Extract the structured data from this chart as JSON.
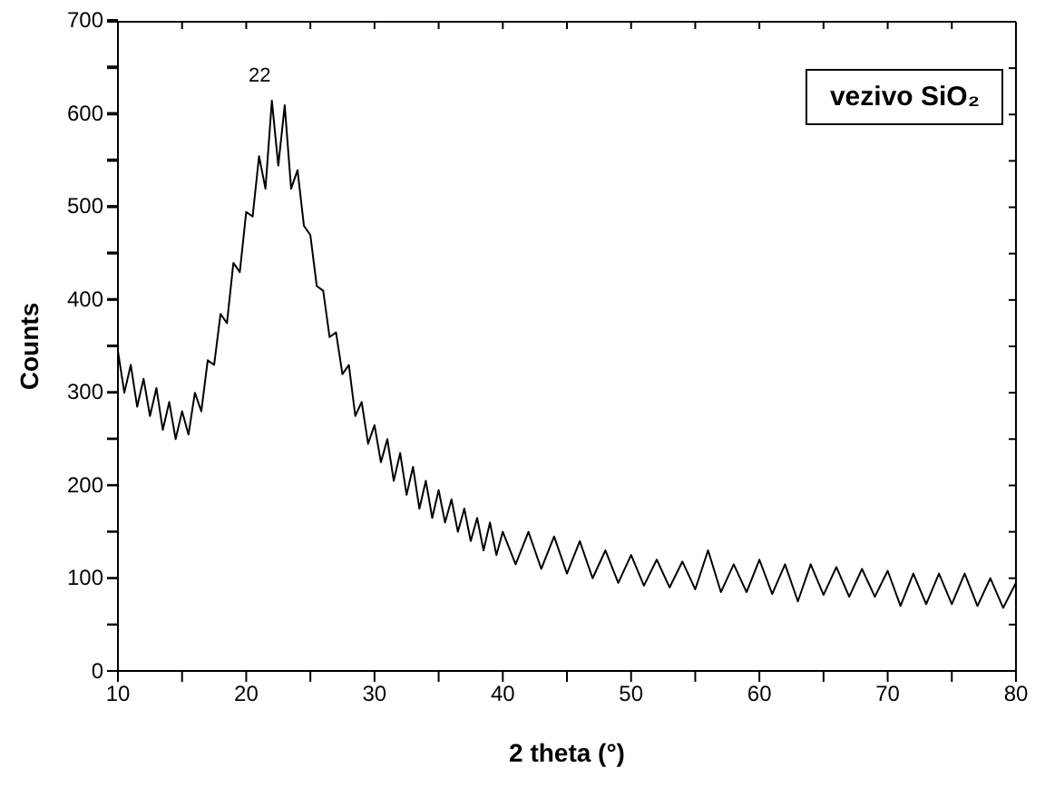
{
  "chart_data": {
    "type": "line",
    "xlabel": "2 theta (°)",
    "ylabel": "Counts",
    "annotations": [
      "vezivo SiO₂",
      "22"
    ],
    "x": [
      10,
      10.5,
      11,
      11.5,
      12,
      12.5,
      13,
      13.5,
      14,
      14.5,
      15,
      15.5,
      16,
      16.5,
      17,
      17.5,
      18,
      18.5,
      19,
      19.5,
      20,
      20.5,
      21,
      21.5,
      22,
      22.5,
      23,
      23.5,
      24,
      24.5,
      25,
      25.5,
      26,
      26.5,
      27,
      27.5,
      28,
      28.5,
      29,
      29.5,
      30,
      30.5,
      31,
      31.5,
      32,
      32.5,
      33,
      33.5,
      34,
      34.5,
      35,
      35.5,
      36,
      36.5,
      37,
      37.5,
      38,
      38.5,
      39,
      39.5,
      40,
      41,
      42,
      43,
      44,
      45,
      46,
      47,
      48,
      49,
      50,
      51,
      52,
      53,
      54,
      55,
      56,
      57,
      58,
      59,
      60,
      61,
      62,
      63,
      64,
      65,
      66,
      67,
      68,
      69,
      70,
      71,
      72,
      73,
      74,
      75,
      76,
      77,
      78,
      79,
      80
    ],
    "series": [
      {
        "color": "#000000",
        "values": [
          345,
          300,
          330,
          285,
          315,
          275,
          305,
          260,
          290,
          250,
          280,
          255,
          300,
          280,
          335,
          330,
          385,
          375,
          440,
          430,
          495,
          490,
          555,
          520,
          615,
          545,
          610,
          520,
          540,
          480,
          470,
          415,
          410,
          360,
          365,
          320,
          330,
          275,
          290,
          245,
          265,
          225,
          250,
          205,
          235,
          190,
          220,
          175,
          205,
          165,
          195,
          160,
          185,
          150,
          175,
          140,
          165,
          130,
          160,
          125,
          150,
          115,
          150,
          110,
          145,
          105,
          140,
          100,
          130,
          95,
          125,
          92,
          120,
          90,
          118,
          88,
          130,
          85,
          115,
          85,
          120,
          83,
          115,
          75,
          115,
          82,
          112,
          80,
          110,
          80,
          108,
          70,
          105,
          72,
          105,
          72,
          105,
          70,
          100,
          68,
          95
        ]
      }
    ],
    "xlim": [
      10,
      80
    ],
    "xticks": [
      10,
      {
        "value": 15,
        "label": null
      },
      20,
      {
        "value": 25,
        "label": null
      },
      30,
      {
        "value": 35,
        "label": null
      },
      40,
      {
        "value": 45,
        "label": null
      },
      50,
      {
        "value": 55,
        "label": null
      },
      60,
      {
        "value": 65,
        "label": null
      },
      70,
      {
        "value": 75,
        "label": null
      },
      80
    ],
    "ylim": [
      0,
      700
    ],
    "yticks": [
      0,
      {
        "value": 50,
        "label": null
      },
      100,
      {
        "value": 150,
        "label": null
      },
      200,
      {
        "value": 250,
        "label": null
      },
      300,
      {
        "value": 350,
        "label": null
      },
      400,
      {
        "value": 450,
        "label": null
      },
      500,
      {
        "value": 550,
        "label": null
      },
      600,
      {
        "value": 650,
        "label": null
      },
      700
    ],
    "grid": false,
    "legend": false,
    "marker": "none",
    "line_style": "solid"
  }
}
